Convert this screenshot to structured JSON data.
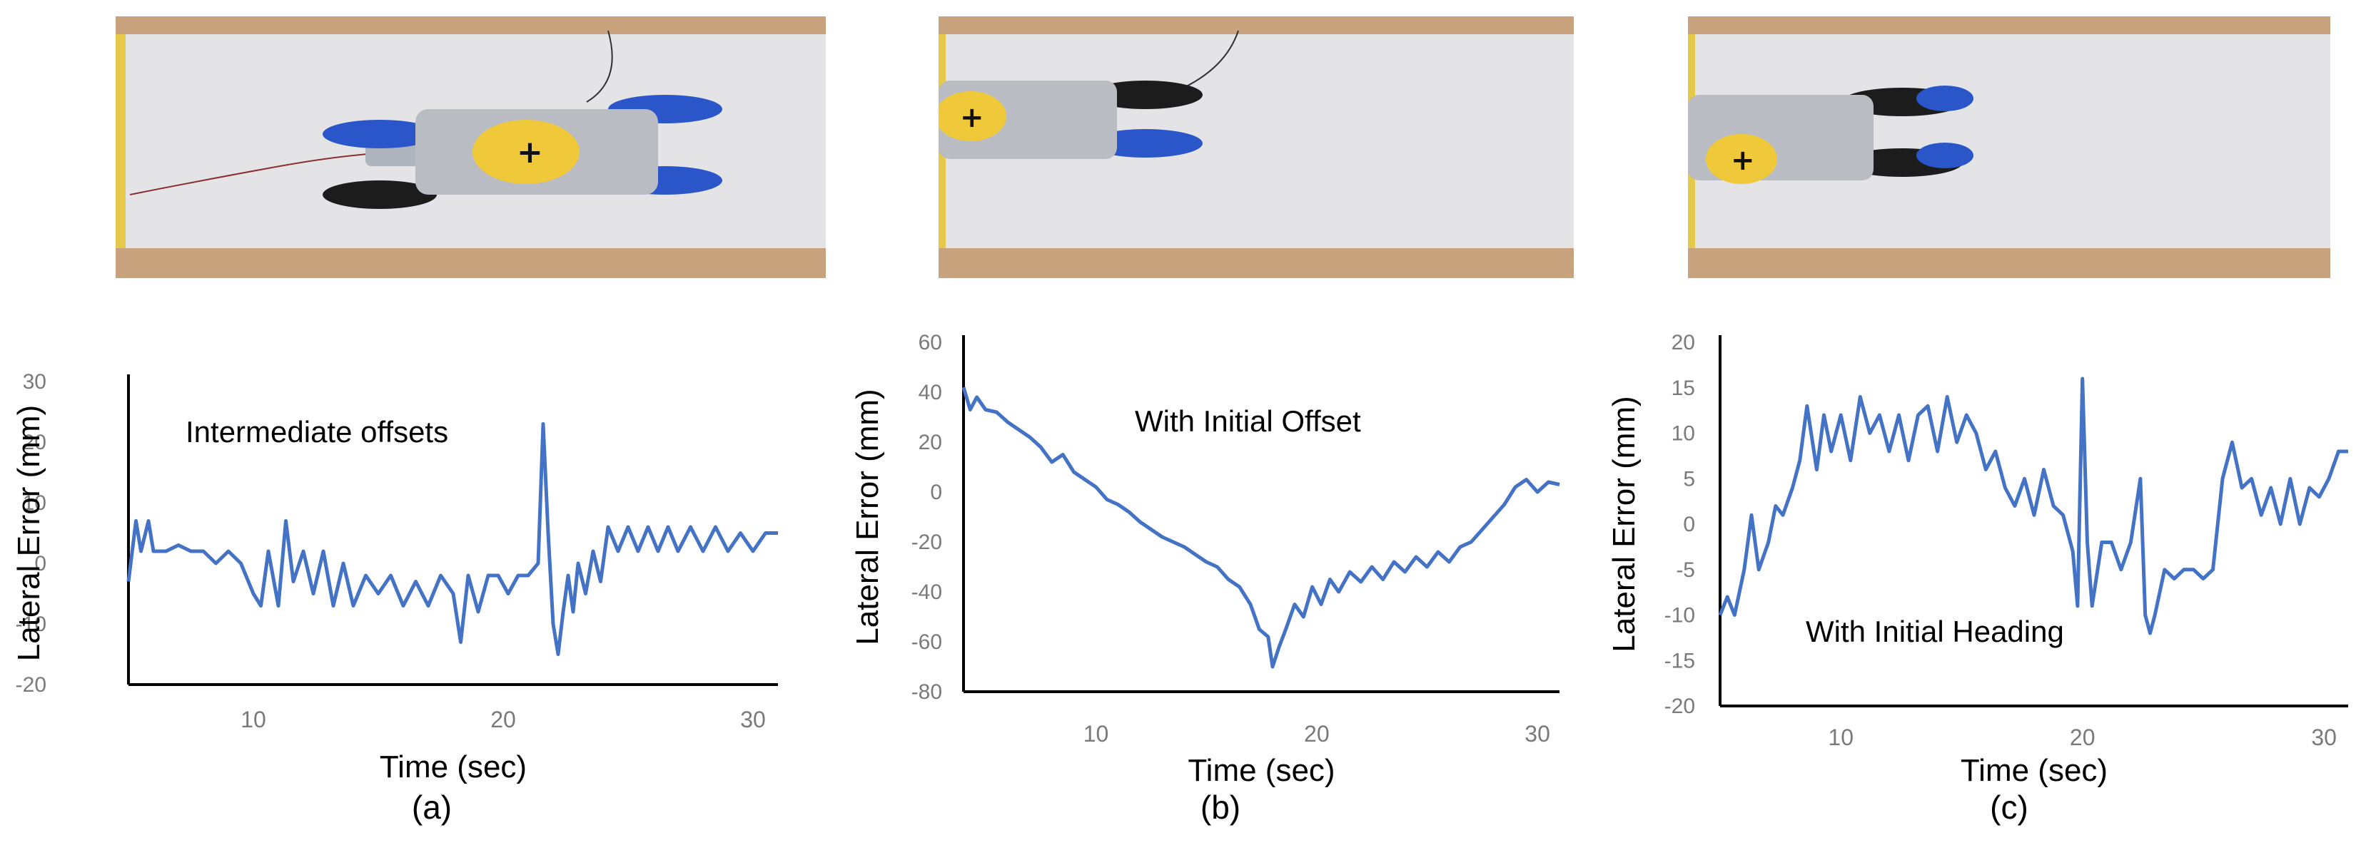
{
  "colors": {
    "series": "#4472c4",
    "axis": "#000000",
    "tick_text": "#7a7a7a",
    "floor": "#e4e4e6",
    "border": "#c9a27e"
  },
  "panels": [
    {
      "caption": "(a)",
      "photo": {
        "description_icon": "robot-top-view-photo"
      },
      "chart_data": {
        "type": "line",
        "annotation": "Intermediate offsets",
        "xlabel": "Time (sec)",
        "ylabel": "Lateral Error (mm)",
        "xlim": [
          5,
          31
        ],
        "ylim": [
          -20,
          30
        ],
        "xticks": [
          "10",
          "20",
          "30"
        ],
        "yticks": [
          "-20",
          "-10",
          "0",
          "10",
          "20",
          "30"
        ],
        "series": [
          {
            "x": [
              5.0,
              5.3,
              5.5,
              5.8,
              6.0,
              6.5,
              7.0,
              7.5,
              8.0,
              8.5,
              9.0,
              9.5,
              10.0,
              10.3,
              10.6,
              11.0,
              11.3,
              11.6,
              12.0,
              12.4,
              12.8,
              13.2,
              13.6,
              14.0,
              14.5,
              15.0,
              15.5,
              16.0,
              16.5,
              17.0,
              17.5,
              18.0,
              18.3,
              18.6,
              19.0,
              19.4,
              19.8,
              20.2,
              20.6,
              21.0,
              21.4,
              21.6,
              21.8,
              22.0,
              22.2,
              22.4,
              22.6,
              22.8,
              23.0,
              23.3,
              23.6,
              23.9,
              24.2,
              24.6,
              25.0,
              25.4,
              25.8,
              26.2,
              26.6,
              27.0,
              27.5,
              28.0,
              28.5,
              29.0,
              29.5,
              30.0,
              30.5,
              31.0
            ],
            "y": [
              -3,
              7,
              2,
              7,
              2,
              2,
              3,
              2,
              2,
              0,
              2,
              0,
              -5,
              -7,
              2,
              -7,
              7,
              -3,
              2,
              -5,
              2,
              -7,
              0,
              -7,
              -2,
              -5,
              -2,
              -7,
              -3,
              -7,
              -2,
              -5,
              -13,
              -2,
              -8,
              -2,
              -2,
              -5,
              -2,
              -2,
              0,
              23,
              5,
              -10,
              -15,
              -8,
              -2,
              -8,
              0,
              -5,
              2,
              -3,
              6,
              2,
              6,
              2,
              6,
              2,
              6,
              2,
              6,
              2,
              6,
              2,
              5,
              2,
              5,
              5
            ]
          }
        ]
      }
    },
    {
      "caption": "(b)",
      "photo": {
        "description_icon": "robot-top-view-photo"
      },
      "chart_data": {
        "type": "line",
        "annotation": "With Initial Offset",
        "xlabel": "Time (sec)",
        "ylabel": "Lateral Error (mm)",
        "xlim": [
          4,
          31
        ],
        "ylim": [
          -80,
          60
        ],
        "xticks": [
          "10",
          "20",
          "30"
        ],
        "yticks": [
          "-80",
          "-60",
          "-40",
          "-20",
          "0",
          "20",
          "40",
          "60"
        ],
        "series": [
          {
            "x": [
              4.0,
              4.3,
              4.6,
              5.0,
              5.5,
              6.0,
              6.5,
              7.0,
              7.5,
              8.0,
              8.5,
              9.0,
              9.5,
              10.0,
              10.5,
              11.0,
              11.5,
              12.0,
              12.5,
              13.0,
              13.5,
              14.0,
              14.5,
              15.0,
              15.5,
              16.0,
              16.5,
              17.0,
              17.4,
              17.8,
              18.0,
              18.3,
              18.6,
              19.0,
              19.4,
              19.8,
              20.2,
              20.6,
              21.0,
              21.5,
              22.0,
              22.5,
              23.0,
              23.5,
              24.0,
              24.5,
              25.0,
              25.5,
              26.0,
              26.5,
              27.0,
              27.5,
              28.0,
              28.5,
              29.0,
              29.5,
              30.0,
              30.5,
              31.0
            ],
            "y": [
              42,
              33,
              38,
              33,
              32,
              28,
              25,
              22,
              18,
              12,
              15,
              8,
              5,
              2,
              -3,
              -5,
              -8,
              -12,
              -15,
              -18,
              -20,
              -22,
              -25,
              -28,
              -30,
              -35,
              -38,
              -45,
              -55,
              -58,
              -70,
              -62,
              -55,
              -45,
              -50,
              -38,
              -45,
              -35,
              -40,
              -32,
              -36,
              -30,
              -35,
              -28,
              -32,
              -26,
              -30,
              -24,
              -28,
              -22,
              -20,
              -15,
              -10,
              -5,
              2,
              5,
              0,
              4,
              3
            ]
          }
        ]
      }
    },
    {
      "caption": "(c)",
      "photo": {
        "description_icon": "robot-top-view-photo"
      },
      "chart_data": {
        "type": "line",
        "annotation": "With Initial  Heading",
        "xlabel": "Time (sec)",
        "ylabel": "Lateral Error (mm)",
        "xlim": [
          5,
          31
        ],
        "ylim": [
          -20,
          20
        ],
        "xticks": [
          "10",
          "20",
          "30"
        ],
        "yticks": [
          "-20",
          "-15",
          "-10",
          "-5",
          "0",
          "5",
          "10",
          "15",
          "20"
        ],
        "series": [
          {
            "x": [
              5.0,
              5.3,
              5.6,
              6.0,
              6.3,
              6.6,
              7.0,
              7.3,
              7.6,
              8.0,
              8.3,
              8.6,
              9.0,
              9.3,
              9.6,
              10.0,
              10.4,
              10.8,
              11.2,
              11.6,
              12.0,
              12.4,
              12.8,
              13.2,
              13.6,
              14.0,
              14.4,
              14.8,
              15.2,
              15.6,
              16.0,
              16.4,
              16.8,
              17.2,
              17.6,
              18.0,
              18.4,
              18.8,
              19.2,
              19.6,
              19.8,
              20.0,
              20.2,
              20.4,
              20.8,
              21.2,
              21.6,
              22.0,
              22.4,
              22.6,
              22.8,
              23.0,
              23.4,
              23.8,
              24.2,
              24.6,
              25.0,
              25.4,
              25.8,
              26.2,
              26.6,
              27.0,
              27.4,
              27.8,
              28.2,
              28.6,
              29.0,
              29.4,
              29.8,
              30.2,
              30.6,
              31.0
            ],
            "y": [
              -10,
              -8,
              -10,
              -5,
              1,
              -5,
              -2,
              2,
              1,
              4,
              7,
              13,
              6,
              12,
              8,
              12,
              7,
              14,
              10,
              12,
              8,
              12,
              7,
              12,
              13,
              8,
              14,
              9,
              12,
              10,
              6,
              8,
              4,
              2,
              5,
              1,
              6,
              2,
              1,
              -3,
              -9,
              16,
              -2,
              -9,
              -2,
              -2,
              -5,
              -2,
              5,
              -10,
              -12,
              -10,
              -5,
              -6,
              -5,
              -5,
              -6,
              -5,
              5,
              9,
              4,
              5,
              1,
              4,
              0,
              5,
              0,
              4,
              3,
              5,
              8,
              8
            ]
          }
        ]
      }
    }
  ]
}
